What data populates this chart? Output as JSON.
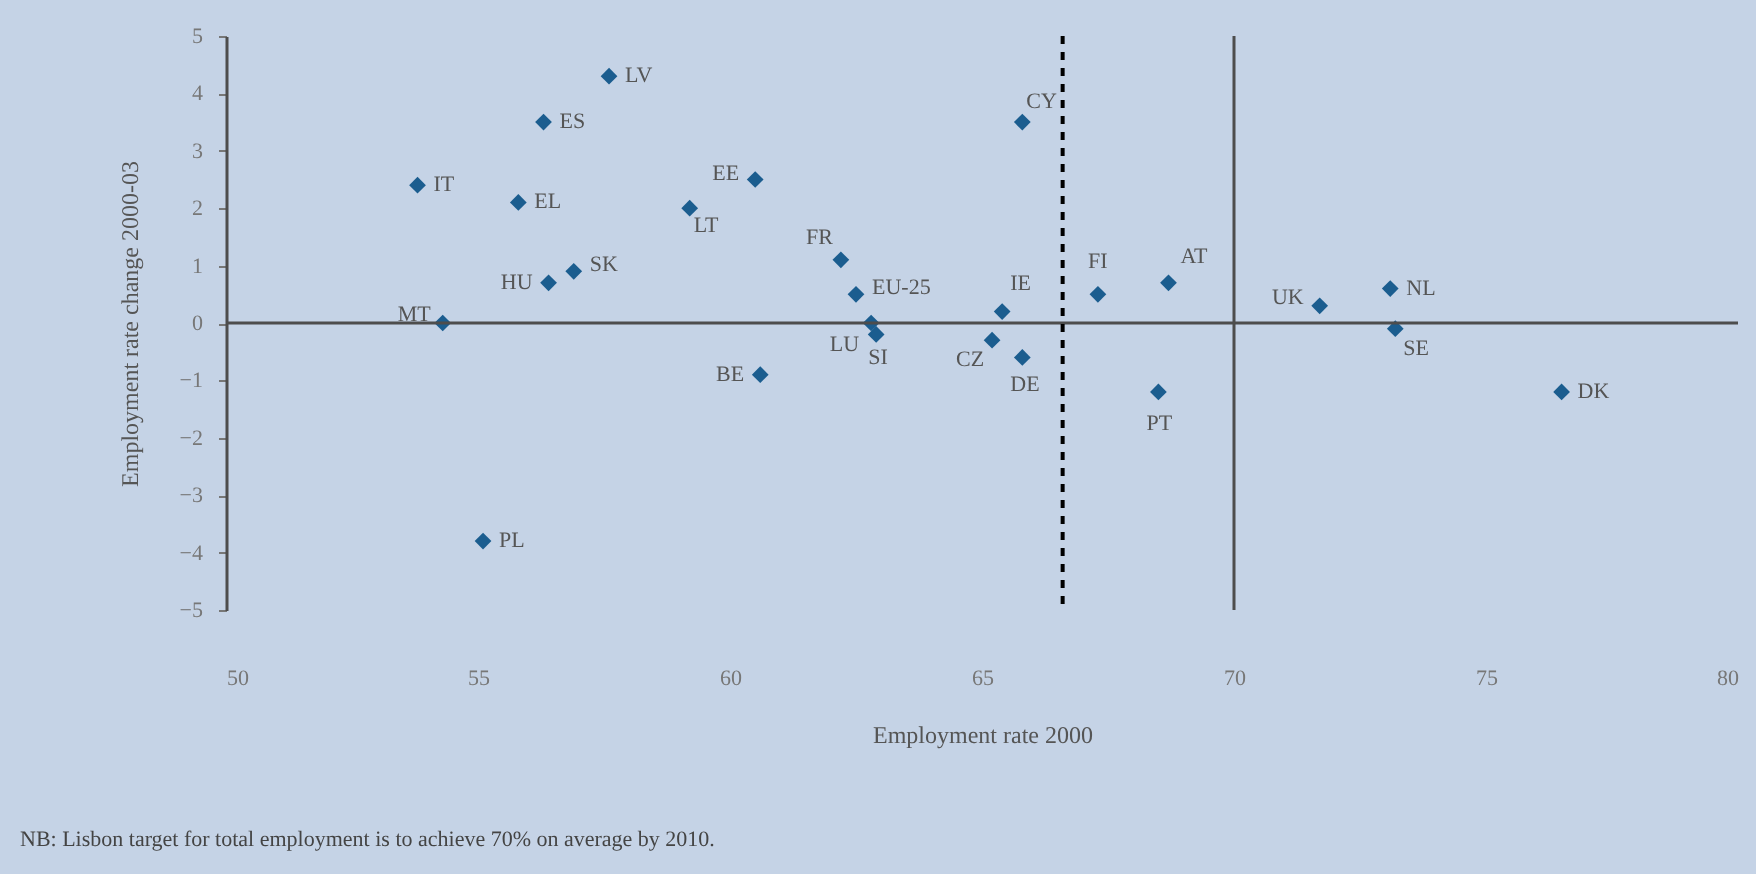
{
  "chart_data": {
    "type": "scatter",
    "xlabel": "Employment rate 2000",
    "ylabel": "Employment rate change 2000-03",
    "xlim": [
      50,
      80
    ],
    "xticks": [
      50,
      55,
      60,
      65,
      70,
      75,
      80
    ],
    "ylim": [
      -5,
      5
    ],
    "yticks": [
      -5,
      -4,
      -3,
      -2,
      -1,
      0,
      1,
      2,
      3,
      4,
      5
    ],
    "grid": false,
    "marker": "diamond",
    "series": [
      {
        "color": "#1b5d8f",
        "x": [
          57.6,
          56.3,
          53.8,
          55.8,
          60.5,
          59.2,
          62.2,
          62.5,
          56.4,
          56.9,
          54.3,
          62.8,
          62.9,
          60.6,
          55.1,
          65.8,
          65.4,
          65.2,
          65.8,
          67.3,
          68.7,
          68.5,
          71.7,
          73.1,
          73.2,
          76.5
        ],
        "values": [
          4.3,
          3.5,
          2.4,
          2.1,
          2.5,
          2.0,
          1.1,
          0.5,
          0.7,
          0.9,
          0.0,
          0.0,
          -0.2,
          -0.9,
          -3.8,
          3.5,
          0.2,
          -0.3,
          -0.6,
          0.5,
          0.7,
          -1.2,
          0.3,
          0.6,
          -0.1,
          -1.2
        ]
      }
    ],
    "ref_lines": [
      {
        "axis": "y",
        "value": 0,
        "color": "#4d4d4d",
        "line_style": "solid"
      },
      {
        "axis": "x",
        "value": 70,
        "color": "#4d4d4d",
        "line_style": "solid"
      },
      {
        "axis": "x",
        "value": 66.6,
        "color": "#000000",
        "line_style": "dashed"
      }
    ],
    "annotations": [
      {
        "text": "LV",
        "x": 57.6,
        "y": 4.3
      },
      {
        "text": "ES",
        "x": 56.3,
        "y": 3.5
      },
      {
        "text": "IT",
        "x": 53.8,
        "y": 2.4
      },
      {
        "text": "EL",
        "x": 55.8,
        "y": 2.1
      },
      {
        "text": "EE",
        "x": 60.5,
        "y": 2.5
      },
      {
        "text": "LT",
        "x": 59.2,
        "y": 2.0
      },
      {
        "text": "FR",
        "x": 62.2,
        "y": 1.1
      },
      {
        "text": "EU-25",
        "x": 62.5,
        "y": 0.5
      },
      {
        "text": "HU",
        "x": 56.4,
        "y": 0.7
      },
      {
        "text": "SK",
        "x": 56.9,
        "y": 0.9
      },
      {
        "text": "MT",
        "x": 54.3,
        "y": 0.0
      },
      {
        "text": "LU",
        "x": 62.8,
        "y": 0.0
      },
      {
        "text": "SI",
        "x": 62.9,
        "y": -0.2
      },
      {
        "text": "BE",
        "x": 60.6,
        "y": -0.9
      },
      {
        "text": "PL",
        "x": 55.1,
        "y": -3.8
      },
      {
        "text": "CY",
        "x": 65.8,
        "y": 3.5
      },
      {
        "text": "IE",
        "x": 65.4,
        "y": 0.2
      },
      {
        "text": "CZ",
        "x": 65.2,
        "y": -0.3
      },
      {
        "text": "DE",
        "x": 65.8,
        "y": -0.6
      },
      {
        "text": "FI",
        "x": 67.3,
        "y": 0.5
      },
      {
        "text": "AT",
        "x": 68.7,
        "y": 0.7
      },
      {
        "text": "PT",
        "x": 68.5,
        "y": -1.2
      },
      {
        "text": "UK",
        "x": 71.7,
        "y": 0.3
      },
      {
        "text": "NL",
        "x": 73.1,
        "y": 0.6
      },
      {
        "text": "SE",
        "x": 73.2,
        "y": -0.1
      },
      {
        "text": "DK",
        "x": 76.5,
        "y": -1.2
      },
      "NB: Lisbon target for total employment is to achieve 70% on average by 2010."
    ]
  }
}
